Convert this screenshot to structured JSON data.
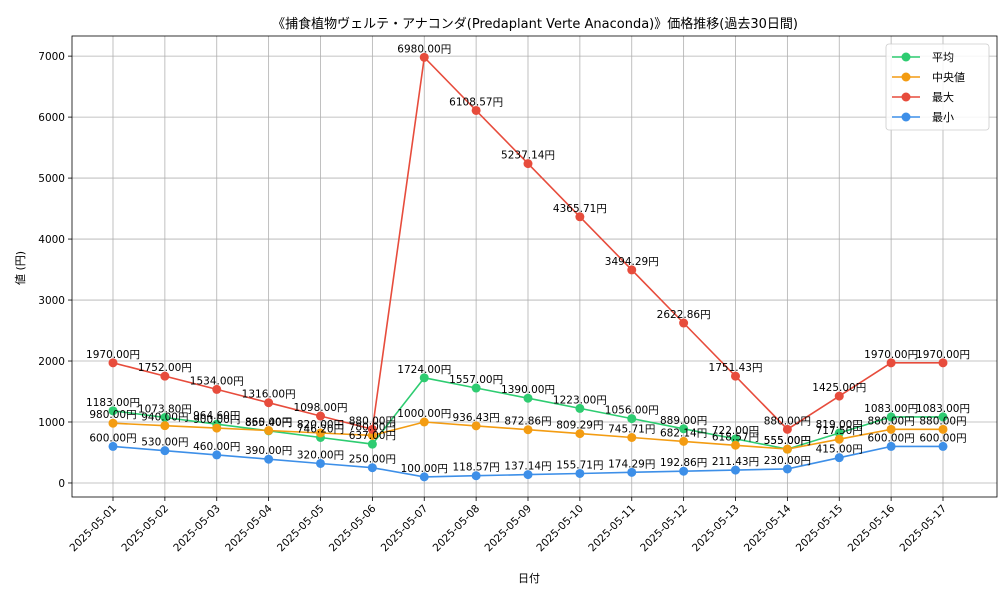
{
  "chart_data": {
    "type": "line",
    "title": "《捕食植物ヴェルテ・アナコンダ(Predaplant Verte Anaconda)》価格推移(過去30日間)",
    "xlabel": "日付",
    "ylabel": "値 (円)",
    "ylim": [
      -230,
      7330
    ],
    "yticks": [
      0,
      1000,
      2000,
      3000,
      4000,
      5000,
      6000,
      7000
    ],
    "grid": true,
    "legend_position": "top-right",
    "label_suffix": "円",
    "categories": [
      "2025-05-01",
      "2025-05-02",
      "2025-05-03",
      "2025-05-04",
      "2025-05-05",
      "2025-05-06",
      "2025-05-07",
      "2025-05-08",
      "2025-05-09",
      "2025-05-10",
      "2025-05-11",
      "2025-05-12",
      "2025-05-13",
      "2025-05-14",
      "2025-05-15",
      "2025-05-16",
      "2025-05-17"
    ],
    "series": [
      {
        "name": "平均",
        "color": "#2ecc71",
        "values": [
          1183.0,
          1073.8,
          964.6,
          855.4,
          746.2,
          637.0,
          1724.0,
          1557.0,
          1390.0,
          1223.0,
          1056.0,
          889.0,
          722.0,
          555.0,
          819.0,
          1083.0,
          1083.0
        ]
      },
      {
        "name": "中央値",
        "color": "#f39c12",
        "values": [
          980.0,
          940.0,
          900.0,
          860.0,
          820.0,
          780.0,
          1000.0,
          936.43,
          872.86,
          809.29,
          745.71,
          682.14,
          618.57,
          555.0,
          717.5,
          880.0,
          880.0
        ]
      },
      {
        "name": "最大",
        "color": "#e74c3c",
        "values": [
          1970.0,
          1752.0,
          1534.0,
          1316.0,
          1098.0,
          880.0,
          6980.0,
          6108.57,
          5237.14,
          4365.71,
          3494.29,
          2622.86,
          1751.43,
          880.0,
          1425.0,
          1970.0,
          1970.0
        ]
      },
      {
        "name": "最小",
        "color": "#3d8fe8",
        "values": [
          600.0,
          530.0,
          460.0,
          390.0,
          320.0,
          250.0,
          100.0,
          118.57,
          137.14,
          155.71,
          174.29,
          192.86,
          211.43,
          230.0,
          415.0,
          600.0,
          600.0
        ]
      }
    ]
  }
}
